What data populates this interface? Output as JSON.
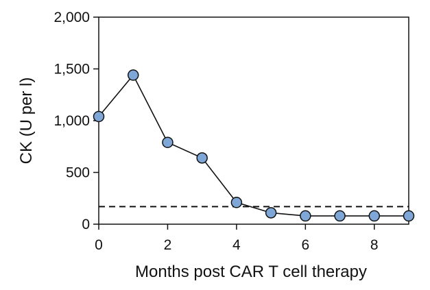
{
  "chart_data": {
    "type": "line",
    "title": "",
    "xlabel": "Months post CAR T cell therapy",
    "ylabel": "CK (U per l)",
    "xlim": [
      0,
      9
    ],
    "ylim": [
      0,
      2000
    ],
    "x_ticks": [
      0,
      2,
      4,
      6,
      8
    ],
    "x_tick_labels": [
      "0",
      "2",
      "4",
      "6",
      "8"
    ],
    "y_ticks": [
      0,
      500,
      1000,
      1500,
      2000
    ],
    "y_tick_labels": [
      "0",
      "500",
      "1,000",
      "1,500",
      "2,000"
    ],
    "series": [
      {
        "x": [
          0,
          1,
          2,
          3,
          4,
          5,
          6,
          7,
          8,
          9
        ],
        "y": [
          1040,
          1440,
          790,
          640,
          210,
          110,
          80,
          80,
          80,
          80
        ],
        "color": "#7ea6d6"
      }
    ],
    "reference_line": {
      "y": 170,
      "style": "dashed"
    },
    "grid": false,
    "legend": "none"
  }
}
